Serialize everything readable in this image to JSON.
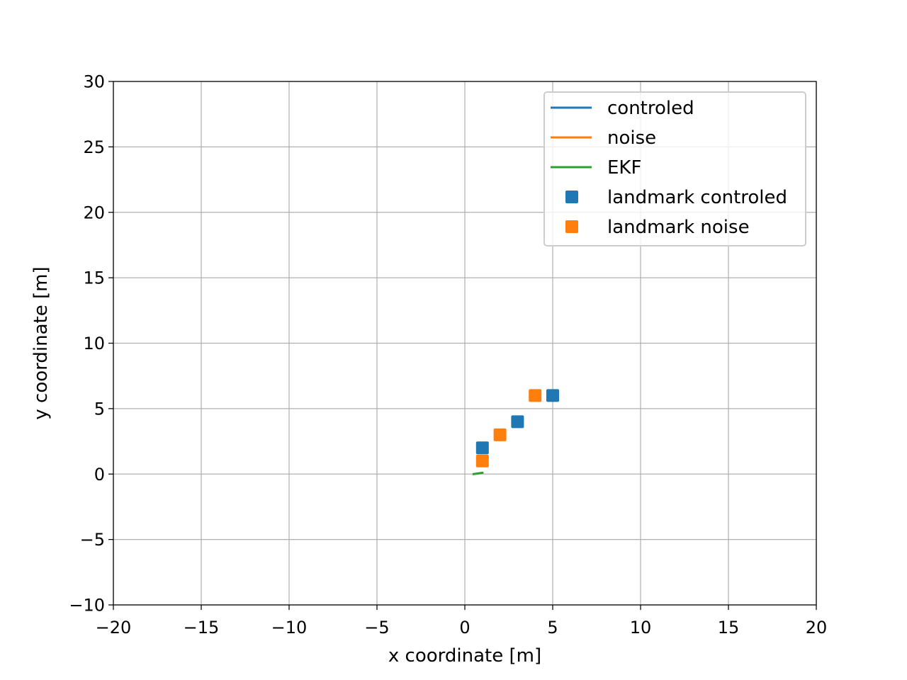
{
  "chart_data": {
    "type": "scatter",
    "title": "",
    "xlabel": "x coordinate [m]",
    "ylabel": "y coordinate [m]",
    "xlim": [
      -20,
      20
    ],
    "ylim": [
      -10,
      30
    ],
    "grid": true,
    "legend_position": "top-right",
    "x_ticks": [
      -20,
      -15,
      -10,
      -5,
      0,
      5,
      10,
      15,
      20
    ],
    "y_ticks": [
      -10,
      -5,
      0,
      5,
      10,
      15,
      20,
      25,
      30
    ],
    "x_tick_labels": [
      "−20",
      "−15",
      "−10",
      "−5",
      "0",
      "5",
      "10",
      "15",
      "20"
    ],
    "y_tick_labels": [
      "−10",
      "−5",
      "0",
      "5",
      "10",
      "15",
      "20",
      "25",
      "30"
    ],
    "series": [
      {
        "name": "controled",
        "kind": "line",
        "color": "#1f77b4",
        "x": [],
        "y": []
      },
      {
        "name": "noise",
        "kind": "line",
        "color": "#ff7f0e",
        "x": [],
        "y": []
      },
      {
        "name": "EKF",
        "kind": "line",
        "color": "#2ca02c",
        "x": [
          0.5,
          1.0
        ],
        "y": [
          0.0,
          0.1
        ]
      },
      {
        "name": "landmark controled",
        "kind": "marker",
        "color": "#1f77b4",
        "x": [
          1,
          3,
          5
        ],
        "y": [
          2,
          4,
          6
        ]
      },
      {
        "name": "landmark noise",
        "kind": "marker",
        "color": "#ff7f0e",
        "x": [
          1,
          2,
          4
        ],
        "y": [
          1,
          3,
          6
        ]
      }
    ]
  }
}
